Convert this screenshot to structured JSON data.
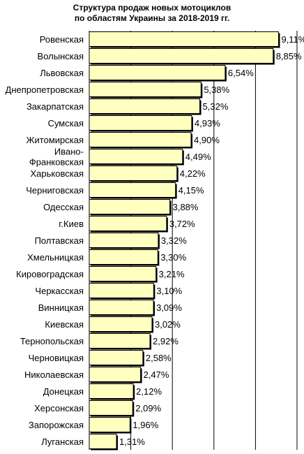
{
  "chart_data": {
    "type": "bar",
    "orientation": "horizontal",
    "title_lines": [
      "Структура продаж новых мотоциклов",
      "по областям Украины за 2018-2019 гг."
    ],
    "categories": [
      "Ровенская",
      "Волынская",
      "Львовская",
      "Днепропетровская",
      "Закарпатская",
      "Сумская",
      "Житомирская",
      "Ивано-Франковская",
      "Харьковская",
      "Черниговская",
      "Одесская",
      "г.Киев",
      "Полтавская",
      "Хмельницкая",
      "Кировоградская",
      "Черкасская",
      "Винницкая",
      "Киевская",
      "Тернопольская",
      "Черновицкая",
      "Николаевская",
      "Донецкая",
      "Херсонская",
      "Запорожская",
      "Луганская"
    ],
    "category_display_lines": {
      "7": [
        "Ивано-",
        "Франковская"
      ]
    },
    "values": [
      9.11,
      8.85,
      6.54,
      5.38,
      5.32,
      4.93,
      4.9,
      4.49,
      4.22,
      4.15,
      3.88,
      3.72,
      3.32,
      3.3,
      3.21,
      3.1,
      3.09,
      3.02,
      2.92,
      2.58,
      2.47,
      2.12,
      2.09,
      1.96,
      1.31
    ],
    "value_labels": [
      "9,11%",
      "8,85%",
      "6,54%",
      "5,38%",
      "5,32%",
      "4,93%",
      "4,90%",
      "4,49%",
      "4,22%",
      "4,15%",
      "3,88%",
      "3,72%",
      "3,32%",
      "3,30%",
      "3,21%",
      "3,10%",
      "3,09%",
      "3,02%",
      "2,92%",
      "2,58%",
      "2,47%",
      "2,12%",
      "2,09%",
      "1,96%",
      "1,31%"
    ],
    "xlim": [
      0,
      10
    ],
    "x_gridlines": [
      2,
      4,
      6,
      8,
      10
    ],
    "grid": true,
    "legend": "none",
    "colors": {
      "bar_fill": "#ffffc0",
      "bar_stroke": "#000000",
      "grid": "#000000"
    }
  }
}
